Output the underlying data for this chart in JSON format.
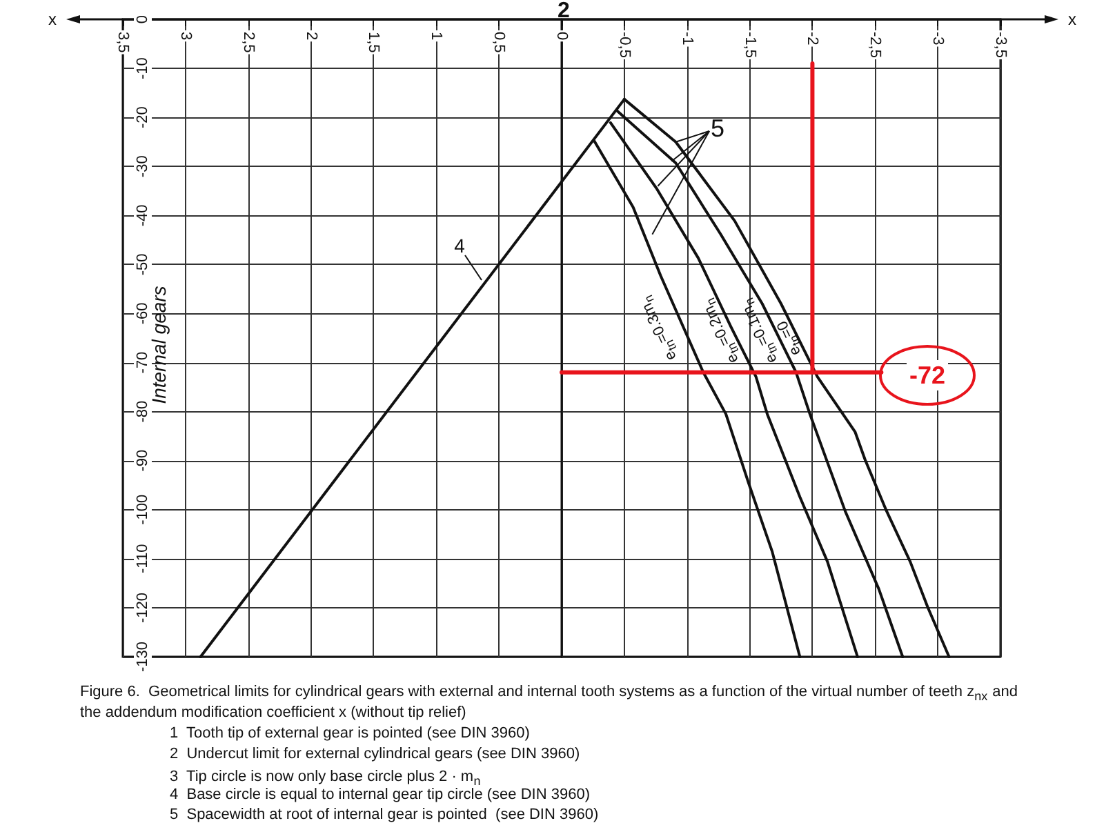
{
  "chart_data": {
    "type": "line",
    "title": "Figure 6.  Geometrical limits for cylindrical gears with external and internal tooth systems as a function of the virtual number of teeth z$_{nx}$ and the addendum modification coefficient x (without tip relief)",
    "xlabel": "x",
    "marker": "none",
    "line_style": "solid",
    "grid": true,
    "xlim": [
      3.5,
      -3.5
    ],
    "xticks": [
      {
        "value": 3.5,
        "label": "3,5"
      },
      3,
      {
        "value": 2.5,
        "label": "2,5"
      },
      2,
      {
        "value": 1.5,
        "label": "1,5"
      },
      1,
      {
        "value": 0.5,
        "label": "0,5"
      },
      0,
      {
        "value": -0.5,
        "label": "-0,5"
      },
      -1,
      {
        "value": -1.5,
        "label": "-1,5"
      },
      -2,
      {
        "value": -2.5,
        "label": "-2,5"
      },
      -3,
      {
        "value": -3.5,
        "label": "-3,5"
      }
    ],
    "ylim": [
      -130,
      0
    ],
    "yticks": [
      -130,
      -120,
      -110,
      -100,
      -90,
      -80,
      -70,
      -60,
      -50,
      -40,
      -30,
      -20,
      -10,
      0
    ],
    "series": [
      {
        "color": "#111111",
        "x": [
          2.88,
          -0.5
        ],
        "values": [
          -130,
          -16.3
        ]
      },
      {
        "color": "#111111",
        "x": [
          -0.5,
          -0.91,
          -1.38,
          -1.75,
          -2.04,
          -2.34,
          -2.42,
          -2.59,
          -2.78,
          -2.92,
          -3.09
        ],
        "values": [
          -16.3,
          -25.0,
          -41.1,
          -58.0,
          -72.9,
          -84.1,
          -89.8,
          -100.2,
          -110.6,
          -119.9,
          -130
        ]
      },
      {
        "color": "#111111",
        "x": [
          -0.44,
          -0.91,
          -1.27,
          -1.6,
          -1.87,
          -1.98,
          -2.26,
          -2.53,
          -2.72
        ],
        "values": [
          -18.6,
          -29.3,
          -43.9,
          -58.0,
          -72.0,
          -80.5,
          -100.2,
          -116.2,
          -130
        ]
      },
      {
        "color": "#111111",
        "x": [
          -0.39,
          -0.76,
          -1.09,
          -1.35,
          -1.55,
          -1.64,
          -1.9,
          -2.12,
          -2.36
        ],
        "values": [
          -21.1,
          -34.6,
          -48.7,
          -62.7,
          -72.9,
          -80.5,
          -97.4,
          -110.6,
          -130
        ]
      },
      {
        "color": "#111111",
        "x": [
          -0.26,
          -0.57,
          -0.79,
          -1.13,
          -1.31,
          -1.49,
          -1.68,
          -1.9
        ],
        "values": [
          -24.8,
          -38.3,
          -52.3,
          -72.0,
          -80.5,
          -94.5,
          -108.6,
          -130
        ]
      },
      {
        "color": "#e8141c",
        "x": [
          -2,
          -2
        ],
        "values": [
          -9,
          -72
        ]
      },
      {
        "color": "#e8141c",
        "x": [
          0,
          -2.55
        ],
        "values": [
          -72,
          -72
        ]
      }
    ],
    "annotations": [
      "Internal gears",
      "4",
      {
        "text": "5",
        "x": -0.91,
        "y": -25.0
      },
      "e$_{tn}$=0.3m$_{n}$",
      "e$_{tn}$=0.2m$_{n}$",
      "e$_{tn}$=0.1m$_{n}$",
      "e$_{tn}$=0",
      "-72",
      "2",
      "1  Tooth tip of external gear is pointed (see DIN 3960)",
      "2  Undercut limit for external cylindrical gears (see DIN 3960)",
      "3  Tip circle is now only base circle plus 2 · m$_{n}$",
      "4  Base circle is equal to internal gear tip circle (see DIN 3960)",
      "5  Spacewidth at root of internal gear is pointed  (see DIN 3960)"
    ]
  }
}
